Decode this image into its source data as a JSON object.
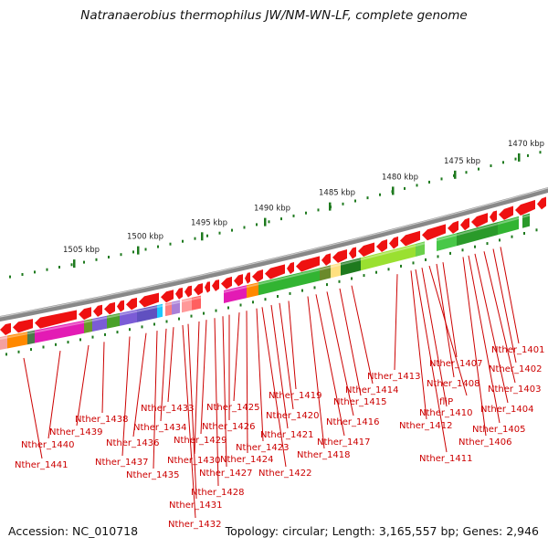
{
  "title": "Natranaerobius thermophilus JW/NM-WN-LF, complete genome",
  "footer": {
    "accession": "Accession: NC_010718",
    "topology": "Topology: circular; Length: 3,165,557 bp; Genes: 2,946"
  },
  "scale_labels": [
    "1470 kbp",
    "1475 kbp",
    "1480 kbp",
    "1485 kbp",
    "1490 kbp",
    "1495 kbp",
    "1500 kbp",
    "1505 kbp"
  ],
  "gene_labels": [
    "Nther_1401",
    "Nther_1402",
    "Nther_1403",
    "Nther_1404",
    "Nther_1405",
    "Nther_1406",
    "Nther_1407",
    "Nther_1408",
    "fliP",
    "Nther_1410",
    "Nther_1411",
    "Nther_1412",
    "Nther_1413",
    "Nther_1414",
    "Nther_1415",
    "Nther_1416",
    "Nther_1417",
    "Nther_1418",
    "Nther_1419",
    "Nther_1420",
    "Nther_1421",
    "Nther_1422",
    "Nther_1423",
    "Nther_1424",
    "Nther_1425",
    "Nther_1426",
    "Nther_1427",
    "Nther_1428",
    "Nther_1429",
    "Nther_1430",
    "Nther_1431",
    "Nther_1432",
    "Nther_1433",
    "Nther_1434",
    "Nther_1435",
    "Nther_1436",
    "Nther_1437",
    "Nther_1438",
    "Nther_1439",
    "Nther_1440",
    "Nther_1441"
  ],
  "colors": {
    "gene_arrow": "#ee1111",
    "label_text": "#cc0000",
    "backbone": "#888888",
    "tick": "#1e7a1e"
  }
}
